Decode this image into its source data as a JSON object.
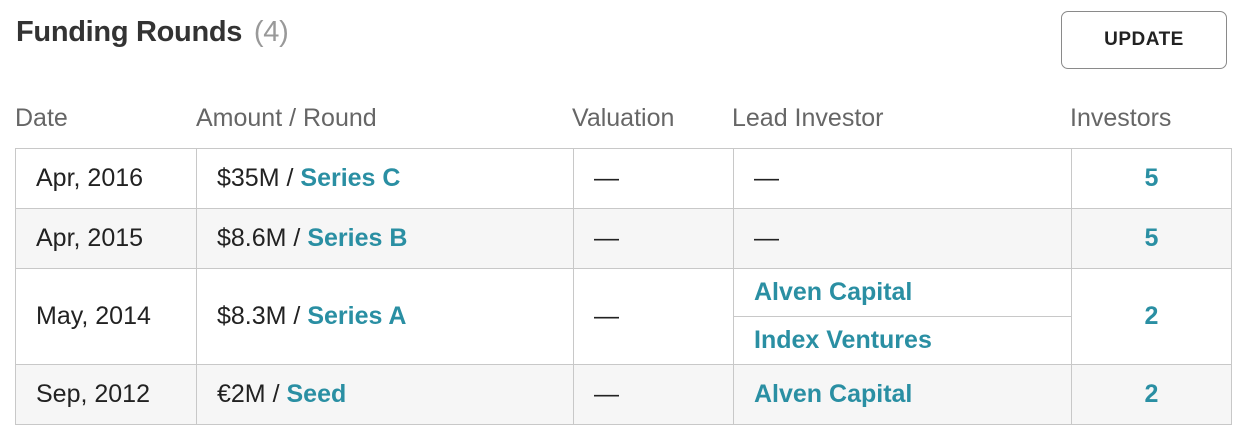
{
  "header": {
    "title": "Funding Rounds",
    "count": "(4)",
    "update_label": "UPDATE"
  },
  "columns": {
    "date": "Date",
    "amount_round": "Amount / Round",
    "valuation": "Valuation",
    "lead_investor": "Lead Investor",
    "investors": "Investors"
  },
  "rows": [
    {
      "date": "Apr, 2016",
      "amount": "$35M",
      "separator": " / ",
      "round": "Series C",
      "valuation": "—",
      "lead_investors": [
        "—"
      ],
      "investors": "5"
    },
    {
      "date": "Apr, 2015",
      "amount": "$8.6M",
      "separator": " / ",
      "round": "Series B",
      "valuation": "—",
      "lead_investors": [
        "—"
      ],
      "investors": "5"
    },
    {
      "date": "May, 2014",
      "amount": "$8.3M",
      "separator": " / ",
      "round": "Series A",
      "valuation": "—",
      "lead_investors": [
        "Alven Capital",
        "Index Ventures"
      ],
      "investors": "2"
    },
    {
      "date": "Sep, 2012",
      "amount": "€2M",
      "separator": " / ",
      "round": "Seed",
      "valuation": "—",
      "lead_investors": [
        "Alven Capital"
      ],
      "investors": "2"
    }
  ],
  "colors": {
    "link": "#2a8fa3",
    "border": "#c8c8c8",
    "alt_row_bg": "#f6f6f6"
  }
}
